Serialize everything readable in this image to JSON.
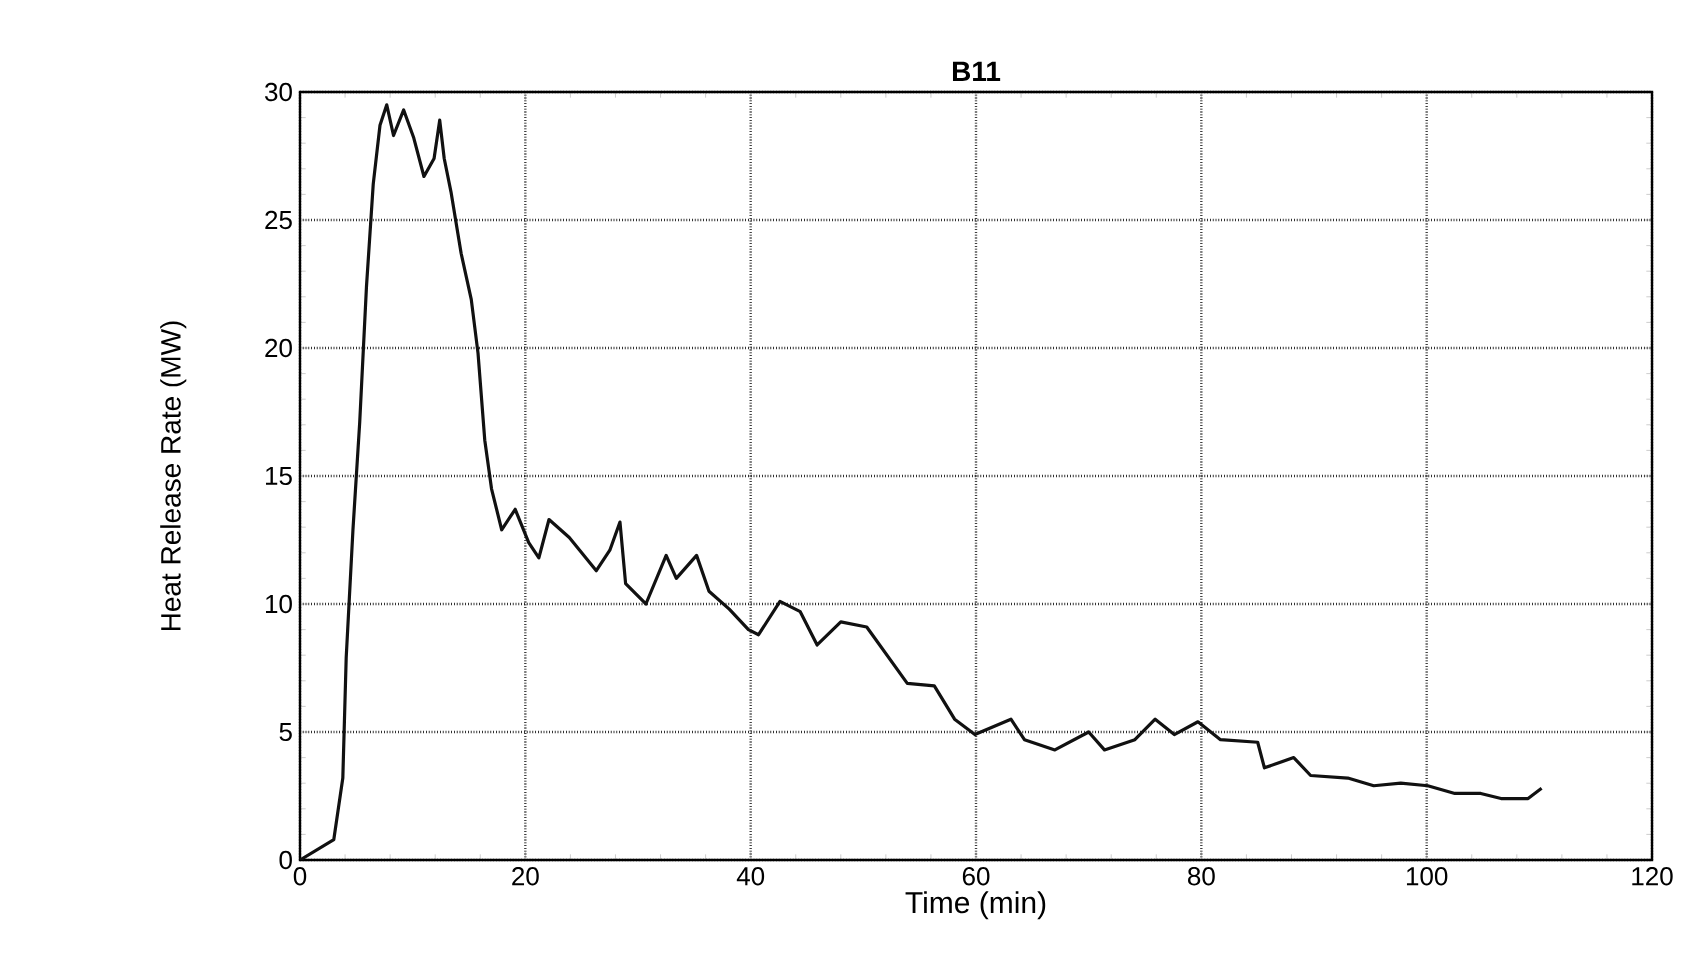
{
  "chart_data": {
    "type": "line",
    "title": "B11",
    "xlabel": "Time (min)",
    "ylabel": "Heat Release Rate (MW)",
    "xlim": [
      0,
      120
    ],
    "xticks": [
      0,
      20,
      40,
      60,
      80,
      100,
      120
    ],
    "ylim": [
      0,
      30
    ],
    "yticks": [
      0,
      5,
      10,
      15,
      20,
      25,
      30
    ],
    "grid": true,
    "line_style": "solid",
    "marker": "none",
    "series": [
      {
        "color": "#111111",
        "x": [
          0,
          3.0,
          3.8,
          4.1,
          4.7,
          5.3,
          5.9,
          6.5,
          7.1,
          7.7,
          8.3,
          9.2,
          10.1,
          11.0,
          11.9,
          12.4,
          12.8,
          13.4,
          14.3,
          15.2,
          15.8,
          16.4,
          17.0,
          17.9,
          19.1,
          20.3,
          21.2,
          22.1,
          23.9,
          26.3,
          27.5,
          28.4,
          28.9,
          30.7,
          32.5,
          33.4,
          35.2,
          36.3,
          38.1,
          39.8,
          40.7,
          42.6,
          44.4,
          45.9,
          48.0,
          50.3,
          52.1,
          53.9,
          56.3,
          58.1,
          59.9,
          63.1,
          64.3,
          67.0,
          70.0,
          71.4,
          74.1,
          75.9,
          77.6,
          79.7,
          81.7,
          85.0,
          85.6,
          88.2,
          89.7,
          93.0,
          95.3,
          97.7,
          100.1,
          102.5,
          104.8,
          106.6,
          109.0,
          110.2
        ],
        "values": [
          0,
          0.8,
          3.2,
          7.9,
          12.9,
          17.1,
          22.4,
          26.4,
          28.7,
          29.5,
          28.3,
          29.3,
          28.2,
          26.7,
          27.4,
          28.9,
          27.4,
          26.1,
          23.7,
          21.9,
          19.8,
          16.4,
          14.5,
          12.9,
          13.7,
          12.4,
          11.8,
          13.3,
          12.6,
          11.3,
          12.1,
          13.2,
          10.8,
          10.0,
          11.9,
          11.0,
          11.9,
          10.5,
          9.8,
          9.0,
          8.8,
          10.1,
          9.7,
          8.4,
          9.3,
          9.1,
          8.0,
          6.9,
          6.8,
          5.5,
          4.9,
          5.5,
          4.7,
          4.3,
          5.0,
          4.3,
          4.7,
          5.5,
          4.9,
          5.4,
          4.7,
          4.6,
          3.6,
          4.0,
          3.3,
          3.2,
          2.9,
          3.0,
          2.9,
          2.6,
          2.6,
          2.4,
          2.4,
          2.8
        ]
      }
    ]
  }
}
